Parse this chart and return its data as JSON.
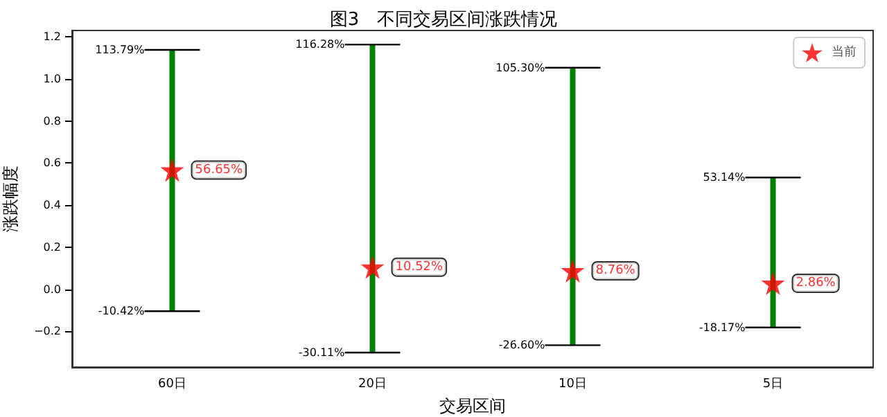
{
  "chart_data": {
    "type": "bar",
    "title": "图3　不同交易区间涨跌情况",
    "xlabel": "交易区间",
    "ylabel": "涨跌幅度",
    "categories": [
      "60日",
      "20日",
      "10日",
      "5日"
    ],
    "values": [
      1.2421,
      1.4639,
      1.319,
      0.7131
    ],
    "base": [
      -0.1042,
      -0.3011,
      -0.266,
      -0.1817
    ],
    "color": "#008000",
    "series": [
      {
        "type": "scatter",
        "name": "当前",
        "color": "#ff0000",
        "x": [
          "60日",
          "20日",
          "10日",
          "5日"
        ],
        "values": [
          0.5665,
          0.1052,
          0.0876,
          0.0286
        ],
        "value_labels": [
          "56.65%",
          "10.52%",
          "8.76%",
          "2.86%"
        ],
        "marker": "star"
      }
    ],
    "annotations": [
      {
        "text": "113.79%",
        "x": "60日",
        "y": 1.1379
      },
      {
        "text": "-10.42%",
        "x": "60日",
        "y": -0.1042
      },
      {
        "text": "116.28%",
        "x": "20日",
        "y": 1.1628
      },
      {
        "text": "-30.11%",
        "x": "20日",
        "y": -0.3011
      },
      {
        "text": "105.30%",
        "x": "10日",
        "y": 1.053
      },
      {
        "text": "-26.60%",
        "x": "10日",
        "y": -0.266
      },
      {
        "text": "53.14%",
        "x": "5日",
        "y": 0.5314
      },
      {
        "text": "-18.17%",
        "x": "5日",
        "y": -0.1817
      }
    ],
    "ylim": [
      -0.37,
      1.23
    ],
    "yticks": [
      {
        "value": -0.2,
        "label": "−0.2"
      },
      {
        "value": 0,
        "label": "0.0"
      },
      {
        "value": 0.2,
        "label": "0.2"
      },
      {
        "value": 0.4,
        "label": "0.4"
      },
      {
        "value": 0.6,
        "label": "0.6"
      },
      {
        "value": 0.8,
        "label": "0.8"
      },
      {
        "value": 1.0,
        "label": "1.0"
      },
      {
        "value": 1.2,
        "label": "1.2"
      }
    ],
    "legend": "top right",
    "grid": false
  }
}
